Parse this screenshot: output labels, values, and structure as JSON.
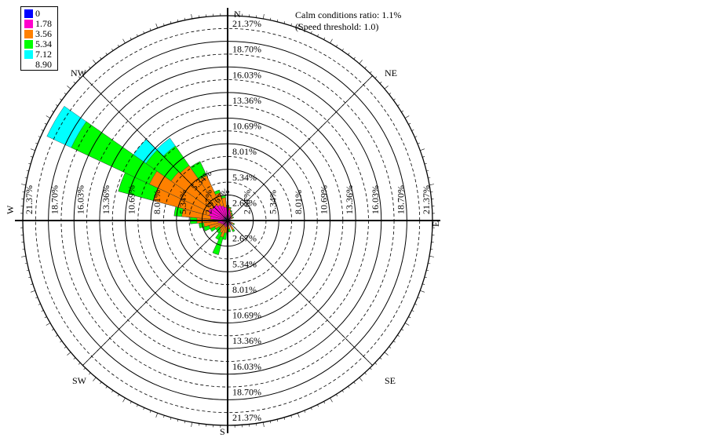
{
  "header": {
    "calm_text": "Calm conditions ratio: 1.1%",
    "threshold_text": "(Speed threshold: 1.0)"
  },
  "legend": [
    {
      "label": "0",
      "color": "#0000ff"
    },
    {
      "label": "1.78",
      "color": "#ff00cc"
    },
    {
      "label": "3.56",
      "color": "#ff8000"
    },
    {
      "label": "5.34",
      "color": "#00ff00"
    },
    {
      "label": "7.12",
      "color": "#00ffff"
    },
    {
      "label": "8.90",
      "color": null
    }
  ],
  "chart_data": {
    "type": "windrose",
    "directions": [
      "N",
      "NE",
      "E",
      "SE",
      "S",
      "SW",
      "W",
      "NW"
    ],
    "ring_labels": [
      "2.67%",
      "5.34%",
      "8.01%",
      "10.69%",
      "13.36%",
      "16.03%",
      "18.70%",
      "21.37%"
    ],
    "rmax": 21.37,
    "speed_bins": [
      "0",
      "1.78",
      "3.56",
      "5.34",
      "7.12",
      "8.90"
    ],
    "bin_colors": [
      "#0000ff",
      "#ff00cc",
      "#ff8000",
      "#00ff00",
      "#00ffff"
    ],
    "sector_width_deg": 10,
    "sectors": [
      {
        "dir_deg": 0,
        "cum": [
          0.3,
          1.2,
          1.5,
          1.6,
          1.6
        ]
      },
      {
        "dir_deg": 10,
        "cum": [
          0.3,
          1.1,
          1.3,
          1.4,
          1.4
        ]
      },
      {
        "dir_deg": 20,
        "cum": [
          0.2,
          0.8,
          1.0,
          1.1,
          1.1
        ]
      },
      {
        "dir_deg": 30,
        "cum": [
          0.2,
          0.6,
          0.8,
          0.9,
          0.9
        ]
      },
      {
        "dir_deg": 40,
        "cum": [
          0.2,
          0.5,
          0.7,
          0.8,
          0.8
        ]
      },
      {
        "dir_deg": 60,
        "cum": [
          0.2,
          0.4,
          0.6,
          0.7,
          0.7
        ]
      },
      {
        "dir_deg": 90,
        "cum": [
          0.1,
          0.4,
          0.6,
          0.7,
          0.7
        ]
      },
      {
        "dir_deg": 120,
        "cum": [
          0.1,
          0.4,
          0.7,
          0.8,
          0.8
        ]
      },
      {
        "dir_deg": 150,
        "cum": [
          0.1,
          0.6,
          1.1,
          1.3,
          1.3
        ]
      },
      {
        "dir_deg": 170,
        "cum": [
          0.1,
          0.5,
          0.9,
          1.2,
          1.2
        ]
      },
      {
        "dir_deg": 190,
        "cum": [
          0.1,
          0.6,
          1.3,
          2.0,
          2.0
        ]
      },
      {
        "dir_deg": 200,
        "cum": [
          0.1,
          0.7,
          1.8,
          3.7,
          3.7
        ]
      },
      {
        "dir_deg": 210,
        "cum": [
          0.1,
          0.6,
          1.4,
          2.2,
          2.2
        ]
      },
      {
        "dir_deg": 220,
        "cum": [
          0.1,
          0.6,
          1.2,
          1.6,
          1.6
        ]
      },
      {
        "dir_deg": 230,
        "cum": [
          0.1,
          0.6,
          1.1,
          1.5,
          1.5
        ]
      },
      {
        "dir_deg": 240,
        "cum": [
          0.2,
          0.7,
          1.5,
          2.0,
          2.0
        ]
      },
      {
        "dir_deg": 250,
        "cum": [
          0.2,
          0.8,
          2.0,
          2.6,
          2.6
        ]
      },
      {
        "dir_deg": 260,
        "cum": [
          0.2,
          1.0,
          2.5,
          3.0,
          3.0
        ]
      },
      {
        "dir_deg": 270,
        "cum": [
          0.3,
          1.3,
          3.2,
          3.9,
          3.9
        ]
      },
      {
        "dir_deg": 280,
        "cum": [
          0.4,
          1.8,
          4.8,
          5.6,
          5.6
        ]
      },
      {
        "dir_deg": 290,
        "cum": [
          0.4,
          2.0,
          8.0,
          11.8,
          11.8
        ]
      },
      {
        "dir_deg": 300,
        "cum": [
          0.4,
          2.2,
          9.0,
          18.0,
          20.8
        ]
      },
      {
        "dir_deg": 310,
        "cum": [
          0.4,
          2.0,
          7.2,
          10.4,
          12.0
        ]
      },
      {
        "dir_deg": 320,
        "cum": [
          0.4,
          2.0,
          7.0,
          9.5,
          10.5
        ]
      },
      {
        "dir_deg": 330,
        "cum": [
          0.4,
          1.8,
          5.2,
          6.8,
          6.8
        ]
      },
      {
        "dir_deg": 340,
        "cum": [
          0.3,
          1.6,
          3.0,
          3.3,
          3.3
        ]
      },
      {
        "dir_deg": 350,
        "cum": [
          0.3,
          1.4,
          2.4,
          2.6,
          2.6
        ]
      }
    ]
  }
}
